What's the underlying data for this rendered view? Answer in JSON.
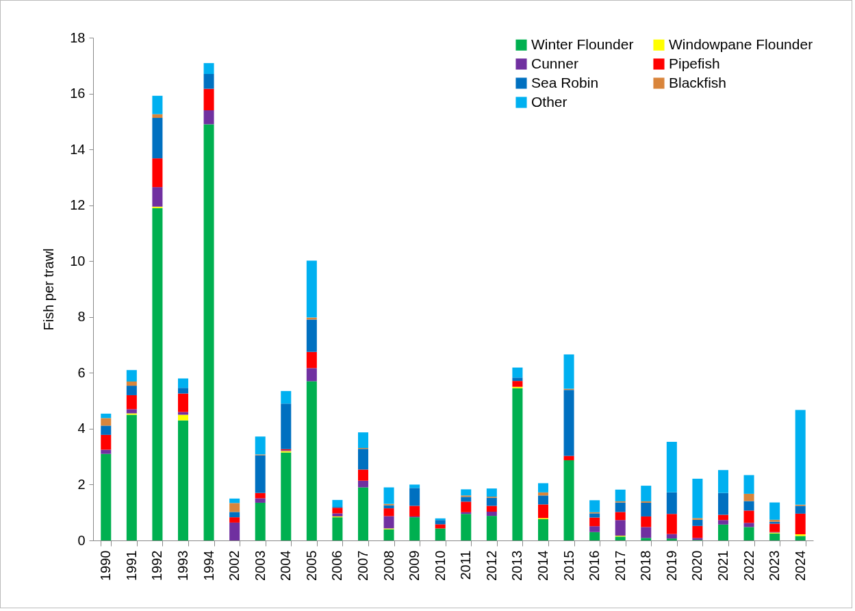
{
  "chart_data": {
    "type": "bar",
    "stacked": true,
    "ylabel": "Fish per trawl",
    "categories": [
      "1990",
      "1991",
      "1992",
      "1993",
      "1994",
      "2002",
      "2003",
      "2004",
      "2005",
      "2006",
      "2007",
      "2008",
      "2009",
      "2010",
      "2011",
      "2012",
      "2013",
      "2014",
      "2015",
      "2016",
      "2017",
      "2018",
      "2019",
      "2020",
      "2021",
      "2022",
      "2023",
      "2024"
    ],
    "series": [
      {
        "name": "Winter Flounder",
        "color": "#00b050",
        "values": [
          3.1,
          4.5,
          11.9,
          4.3,
          14.9,
          0,
          1.35,
          3.15,
          5.7,
          0.83,
          1.9,
          0.4,
          0.83,
          0.43,
          0.95,
          0.88,
          5.45,
          0.76,
          2.87,
          0.3,
          0.14,
          0.09,
          0.07,
          0.02,
          0.57,
          0.48,
          0.25,
          0.16
        ]
      },
      {
        "name": "Windowpane Flounder",
        "color": "#ffff00",
        "values": [
          0,
          0.05,
          0.05,
          0.2,
          0,
          0,
          0,
          0.05,
          0,
          0.03,
          0,
          0.03,
          0,
          0,
          0,
          0,
          0.05,
          0.04,
          0,
          0,
          0.03,
          0,
          0,
          0,
          0,
          0,
          0.03,
          0.06
        ]
      },
      {
        "name": "Cunner",
        "color": "#7030a0",
        "values": [
          0.15,
          0.15,
          0.7,
          0.1,
          0.5,
          0.64,
          0.16,
          0.03,
          0.47,
          0.11,
          0.24,
          0.44,
          0.03,
          0,
          0.06,
          0.15,
          0,
          0,
          0,
          0.21,
          0.56,
          0.39,
          0.16,
          0.07,
          0.16,
          0.15,
          0.02,
          0
        ]
      },
      {
        "name": "Pipefish",
        "color": "#ff0000",
        "values": [
          0.53,
          0.5,
          1.03,
          0.66,
          0.77,
          0.19,
          0.19,
          0.04,
          0.58,
          0.2,
          0.4,
          0.28,
          0.38,
          0.15,
          0.38,
          0.21,
          0.21,
          0.49,
          0.16,
          0.31,
          0.29,
          0.38,
          0.72,
          0.43,
          0.19,
          0.44,
          0.3,
          0.74
        ]
      },
      {
        "name": "Sea Robin",
        "color": "#0070c0",
        "values": [
          0.33,
          0.34,
          1.45,
          0.2,
          0.53,
          0.19,
          1.35,
          1.63,
          1.16,
          0.03,
          0.74,
          0.11,
          0.64,
          0.15,
          0.17,
          0.29,
          0.12,
          0.32,
          2.36,
          0.15,
          0.34,
          0.49,
          0.77,
          0.22,
          0.78,
          0.34,
          0.07,
          0.28
        ]
      },
      {
        "name": "Blackfish",
        "color": "#d9853b",
        "values": [
          0.27,
          0.15,
          0.13,
          0,
          0,
          0.32,
          0.03,
          0,
          0.07,
          0,
          0.03,
          0.05,
          0,
          0,
          0.05,
          0.04,
          null,
          0.11,
          0.04,
          0.04,
          0.04,
          0.05,
          0,
          0.06,
          0,
          0.26,
          0.07,
          0.04
        ]
      },
      {
        "name": "Other",
        "color": "#00b0f0",
        "values": [
          0.16,
          0.41,
          0.66,
          0.34,
          0.39,
          0.16,
          0.64,
          0.45,
          2.04,
          0.25,
          0.56,
          0.59,
          0.12,
          0.06,
          0.22,
          0.29,
          0.36,
          0.33,
          1.23,
          0.43,
          0.42,
          0.56,
          1.81,
          1.41,
          0.82,
          0.67,
          0.62,
          3.39
        ]
      }
    ],
    "ylim": [
      0,
      18
    ],
    "yticks": [
      0,
      2,
      4,
      6,
      8,
      10,
      12,
      14,
      16,
      18
    ],
    "grid": false,
    "legend": "top right"
  }
}
